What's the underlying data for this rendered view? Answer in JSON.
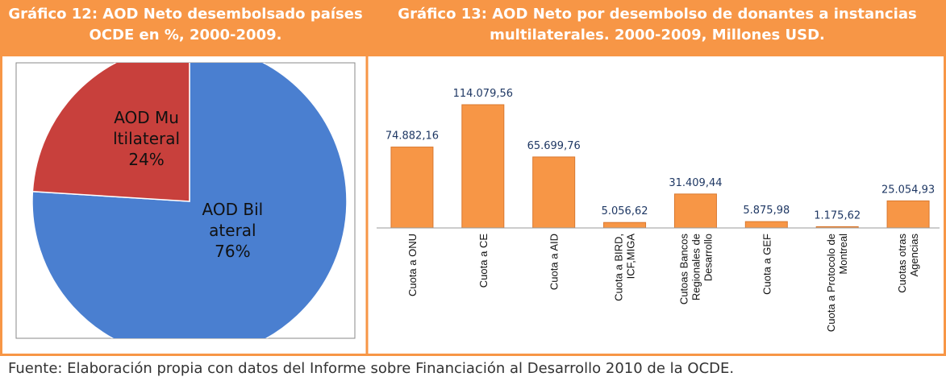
{
  "chart_data": [
    {
      "type": "pie",
      "title": "Gráfico 12: AOD Neto desembolsado países OCDE en %, 2000-2009.",
      "categories": [
        "AOD Bilateral",
        "AOD Multilateral"
      ],
      "values": [
        76,
        24
      ],
      "value_labels": [
        "76%",
        "24%"
      ],
      "colors": [
        "#4a7fd0",
        "#c8403c"
      ]
    },
    {
      "type": "bar",
      "title": "Gráfico 13: AOD Neto por desembolso de donantes a instancias multilaterales. 2000-2009, Millones USD.",
      "categories": [
        "Cuota a ONU",
        "Cuota a CE",
        "Cuota a AID",
        "Cuota a BIRD, ICF,MIGA",
        "Cutoas Bancos Regionales de Desarrollo",
        "Cuota a GEF",
        "Cuota a Protocolo de Montreal",
        "Cuotas otras Agencias"
      ],
      "values": [
        74882.16,
        114079.56,
        65699.76,
        5056.62,
        31409.44,
        5875.98,
        1175.62,
        25054.93
      ],
      "value_labels": [
        "74.882,16",
        "114.079,56",
        "65.699,76",
        "5.056,62",
        "31.409,44",
        "5.875,98",
        "1.175,62",
        "25.054,93"
      ],
      "color": "#f79646"
    }
  ],
  "source": "Fuente: Elaboración propia con datos del Informe sobre Financiación al Desarrollo 2010 de la OCDE."
}
